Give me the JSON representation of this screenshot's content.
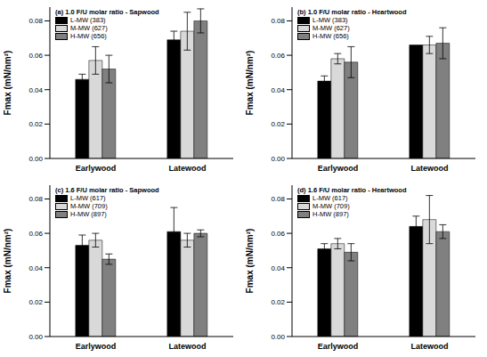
{
  "chart_data": [
    {
      "type": "bar",
      "title": "(a) 1.0 F/U molar ratio - Sapwood",
      "y_label": "Fmax (mN/nm²)",
      "categories": [
        "Earlywood",
        "Latewood"
      ],
      "series": [
        {
          "name": "L-MW (383)",
          "color": "#000000",
          "values": [
            0.046,
            0.069
          ],
          "errors": [
            0.003,
            0.005
          ]
        },
        {
          "name": "M-MW (627)",
          "color": "#d9d9d9",
          "values": [
            0.057,
            0.074
          ],
          "errors": [
            0.008,
            0.011
          ]
        },
        {
          "name": "H-MW (656)",
          "color": "#808080",
          "values": [
            0.052,
            0.08
          ],
          "errors": [
            0.008,
            0.007
          ]
        }
      ],
      "ylim": [
        0,
        0.088
      ],
      "yticks": [
        {
          "value": 0,
          "label": "0.00"
        },
        {
          "value": 0.02,
          "label": "0.02"
        },
        {
          "value": 0.04,
          "label": "0.04"
        },
        {
          "value": 0.06,
          "label": "0.06"
        },
        {
          "value": 0.08,
          "label": "0.08"
        }
      ]
    },
    {
      "type": "bar",
      "title": "(b) 1.0 F/U molar ratio - Heartwood",
      "y_label": "Fmax (mN/nm²)",
      "categories": [
        "Earlywood",
        "Latewood"
      ],
      "series": [
        {
          "name": "L-MW (383)",
          "color": "#000000",
          "values": [
            0.045,
            0.066
          ],
          "errors": [
            0.003,
            0
          ]
        },
        {
          "name": "M-MW (627)",
          "color": "#d9d9d9",
          "values": [
            0.058,
            0.066
          ],
          "errors": [
            0.003,
            0.005
          ]
        },
        {
          "name": "H-MW (656)",
          "color": "#808080",
          "values": [
            0.056,
            0.067
          ],
          "errors": [
            0.009,
            0.009
          ]
        }
      ],
      "ylim": [
        0,
        0.088
      ],
      "yticks": [
        {
          "value": 0,
          "label": "0.00"
        },
        {
          "value": 0.02,
          "label": "0.02"
        },
        {
          "value": 0.04,
          "label": "0.04"
        },
        {
          "value": 0.06,
          "label": "0.06"
        },
        {
          "value": 0.08,
          "label": "0.08"
        }
      ]
    },
    {
      "type": "bar",
      "title": "(c) 1.6 F/U molar ratio - Sapwood",
      "y_label": "Fmax (mN/nm²)",
      "categories": [
        "Earlywood",
        "Latewood"
      ],
      "series": [
        {
          "name": "L-MW (617)",
          "color": "#000000",
          "values": [
            0.053,
            0.061
          ],
          "errors": [
            0.006,
            0.014
          ]
        },
        {
          "name": "M-MW (709)",
          "color": "#d9d9d9",
          "values": [
            0.056,
            0.056
          ],
          "errors": [
            0.004,
            0.004
          ]
        },
        {
          "name": "H-MW (897)",
          "color": "#808080",
          "values": [
            0.045,
            0.06
          ],
          "errors": [
            0.003,
            0.002
          ]
        }
      ],
      "ylim": [
        0,
        0.088
      ],
      "yticks": [
        {
          "value": 0,
          "label": "0.00"
        },
        {
          "value": 0.02,
          "label": "0.02"
        },
        {
          "value": 0.04,
          "label": "0.04"
        },
        {
          "value": 0.06,
          "label": "0.06"
        },
        {
          "value": 0.08,
          "label": "0.08"
        }
      ]
    },
    {
      "type": "bar",
      "title": "(d) 1.6 F/U molar ratio - Heartwood",
      "y_label": "Fmax (mN/nm²)",
      "categories": [
        "Earlywood",
        "Latewood"
      ],
      "series": [
        {
          "name": "L-MW (617)",
          "color": "#000000",
          "values": [
            0.051,
            0.064
          ],
          "errors": [
            0.003,
            0.006
          ]
        },
        {
          "name": "M-MW (709)",
          "color": "#d9d9d9",
          "values": [
            0.054,
            0.068
          ],
          "errors": [
            0.003,
            0.014
          ]
        },
        {
          "name": "H-MW (897)",
          "color": "#808080",
          "values": [
            0.049,
            0.061
          ],
          "errors": [
            0.005,
            0.004
          ]
        }
      ],
      "ylim": [
        0,
        0.088
      ],
      "yticks": [
        {
          "value": 0,
          "label": "0.00"
        },
        {
          "value": 0.02,
          "label": "0.02"
        },
        {
          "value": 0.04,
          "label": "0.04"
        },
        {
          "value": 0.06,
          "label": "0.06"
        },
        {
          "value": 0.08,
          "label": "0.08"
        }
      ]
    }
  ]
}
